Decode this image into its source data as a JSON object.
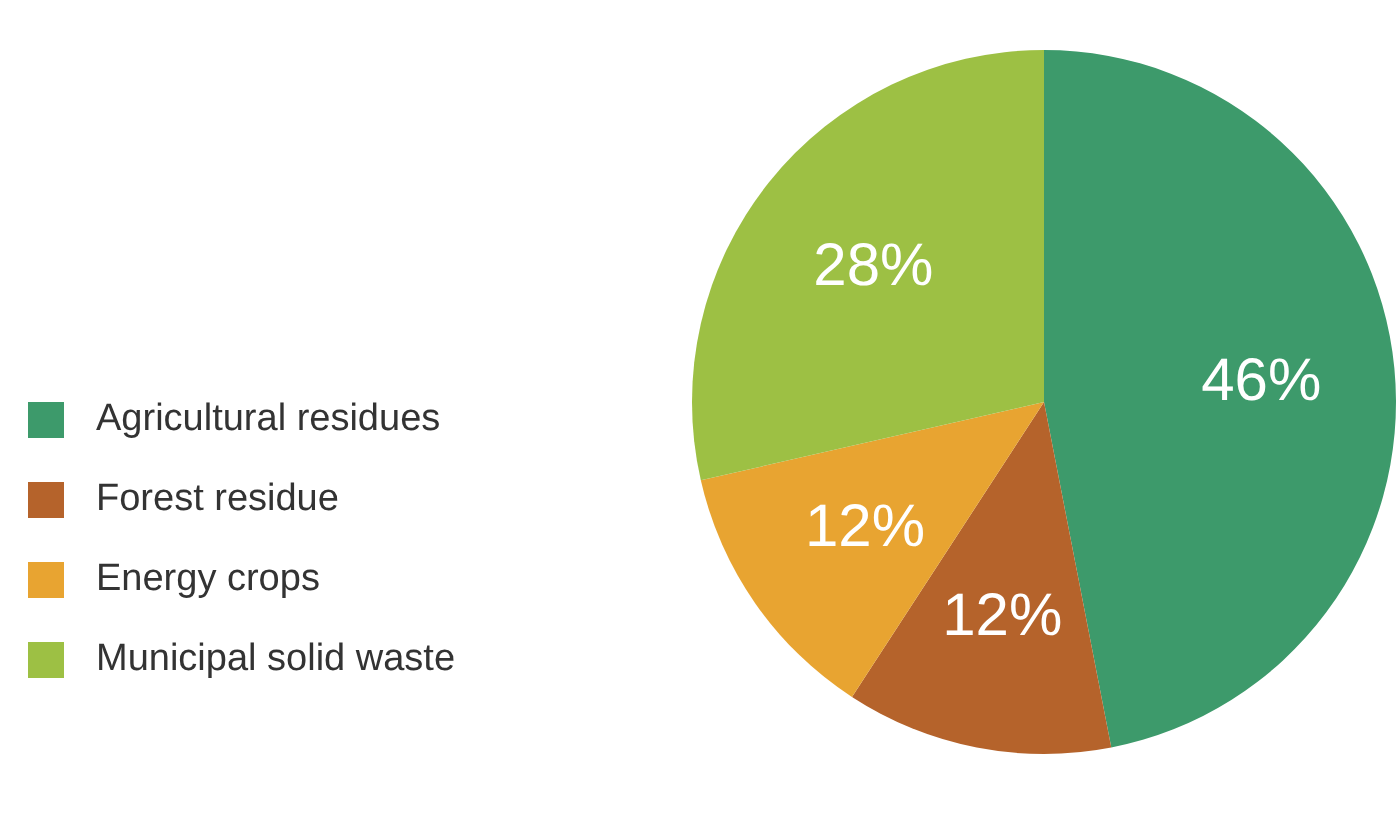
{
  "chart_data": {
    "type": "pie",
    "categories": [
      "Agricultural residues",
      "Forest residue",
      "Energy crops",
      "Municipal solid waste"
    ],
    "values": [
      46,
      12,
      12,
      28
    ],
    "colors": [
      "#3d9a6b",
      "#b5632b",
      "#e8a431",
      "#9dc044"
    ],
    "value_labels": [
      "46%",
      "12%",
      "12%",
      "28%"
    ],
    "legend": "left"
  }
}
